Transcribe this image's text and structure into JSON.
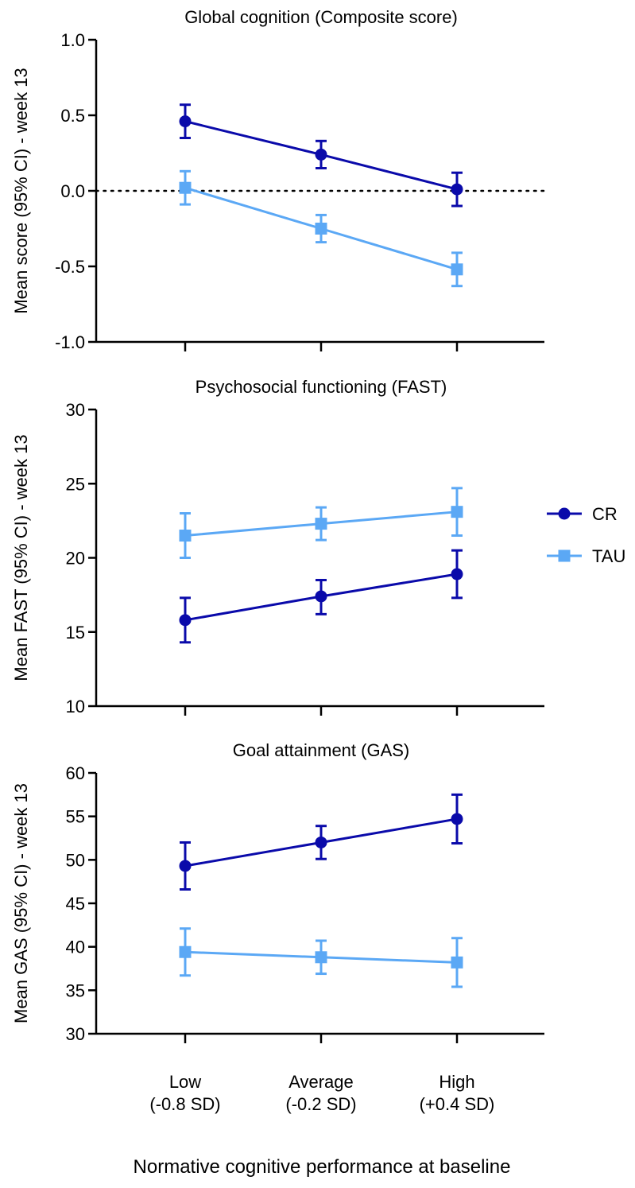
{
  "chart_data": [
    {
      "type": "line",
      "title": "Global cognition (Composite score)",
      "ylabel": "Mean score (95% CI) - week 13",
      "ylim": [
        -1.0,
        1.0
      ],
      "yticks": [
        "-1.0",
        "-0.5",
        "0.0",
        "0.5",
        "1.0"
      ],
      "ytick_values": [
        -1.0,
        -0.5,
        0.0,
        0.5,
        1.0
      ],
      "reference_line": 0.0,
      "series": [
        {
          "name": "CR",
          "values": [
            0.46,
            0.24,
            0.01
          ],
          "lower": [
            0.35,
            0.15,
            -0.1
          ],
          "upper": [
            0.57,
            0.33,
            0.12
          ]
        },
        {
          "name": "TAU",
          "values": [
            0.02,
            -0.25,
            -0.52
          ],
          "lower": [
            -0.09,
            -0.34,
            -0.63
          ],
          "upper": [
            0.13,
            -0.16,
            -0.41
          ]
        }
      ]
    },
    {
      "type": "line",
      "title": "Psychosocial functioning (FAST)",
      "ylabel": "Mean FAST (95% CI) - week 13",
      "ylim": [
        10,
        30
      ],
      "yticks": [
        "10",
        "15",
        "20",
        "25",
        "30"
      ],
      "ytick_values": [
        10,
        15,
        20,
        25,
        30
      ],
      "series": [
        {
          "name": "CR",
          "values": [
            15.8,
            17.4,
            18.9
          ],
          "lower": [
            14.3,
            16.2,
            17.3
          ],
          "upper": [
            17.3,
            18.5,
            20.5
          ]
        },
        {
          "name": "TAU",
          "values": [
            21.5,
            22.3,
            23.1
          ],
          "lower": [
            20.0,
            21.2,
            21.5
          ],
          "upper": [
            23.0,
            23.4,
            24.7
          ]
        }
      ]
    },
    {
      "type": "line",
      "title": "Goal attainment (GAS)",
      "ylabel": "Mean GAS (95% CI) - week 13",
      "ylim": [
        30,
        60
      ],
      "yticks": [
        "30",
        "35",
        "40",
        "45",
        "50",
        "55",
        "60"
      ],
      "ytick_values": [
        30,
        35,
        40,
        45,
        50,
        55,
        60
      ],
      "series": [
        {
          "name": "CR",
          "values": [
            49.3,
            52.0,
            54.7
          ],
          "lower": [
            46.6,
            50.1,
            51.9
          ],
          "upper": [
            52.0,
            53.9,
            57.5
          ]
        },
        {
          "name": "TAU",
          "values": [
            39.4,
            38.8,
            38.2
          ],
          "lower": [
            36.7,
            36.9,
            35.4
          ],
          "upper": [
            42.1,
            40.7,
            41.0
          ]
        }
      ]
    }
  ],
  "categories": [
    {
      "line1": "Low",
      "line2": "(-0.8 SD)"
    },
    {
      "line1": "Average",
      "line2": "(-0.2 SD)"
    },
    {
      "line1": "High",
      "line2": "(+0.4 SD)"
    }
  ],
  "xlabel": "Normative cognitive performance at baseline",
  "legend": {
    "placement": "right",
    "items": [
      {
        "name": "CR",
        "color": "#0A0AAA",
        "marker": "circle"
      },
      {
        "name": "TAU",
        "color": "#5BA8F5",
        "marker": "square"
      }
    ]
  },
  "colors": {
    "CR": "#0A0AAA",
    "TAU": "#5BA8F5"
  }
}
